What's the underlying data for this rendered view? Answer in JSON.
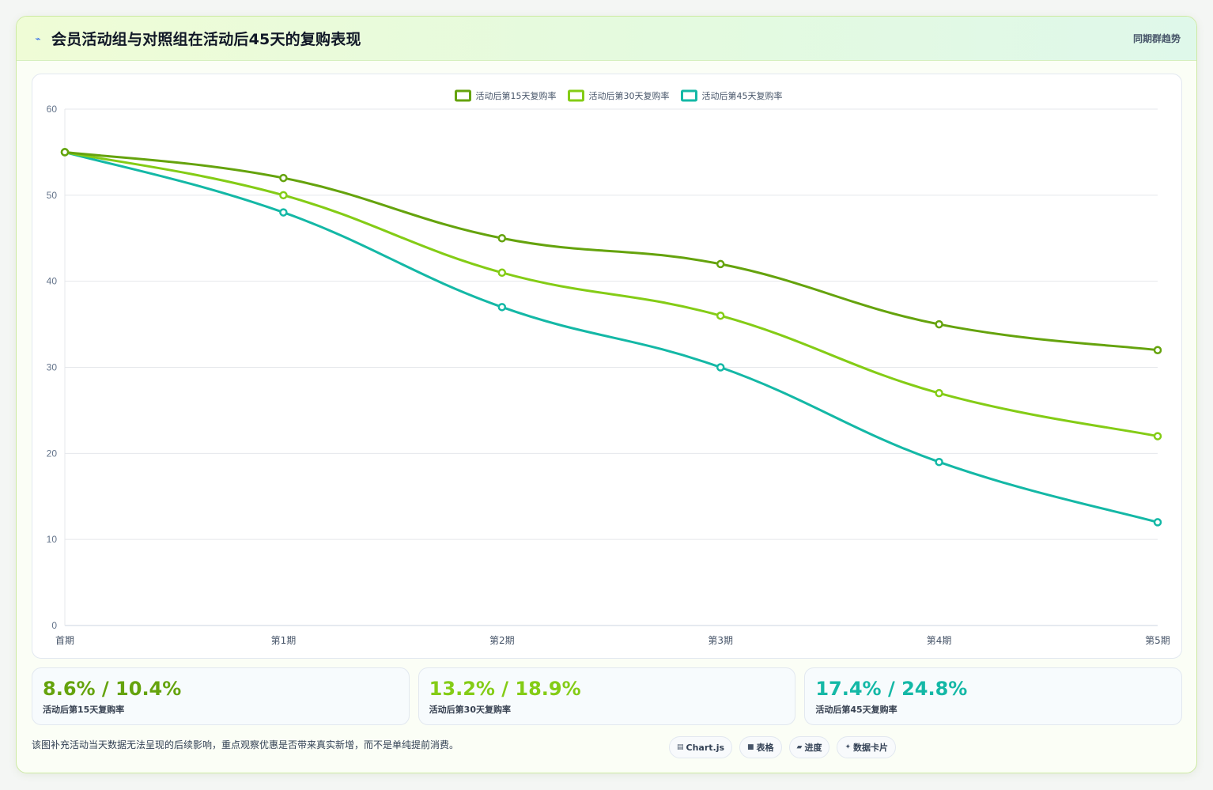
{
  "header": {
    "title": "会员活动组与对照组在活动后45天的复购表现",
    "link": "同期群趋势"
  },
  "chart_data": {
    "type": "line",
    "categories": [
      "首期",
      "第1期",
      "第2期",
      "第3期",
      "第4期",
      "第5期"
    ],
    "ylim": [
      0,
      60
    ],
    "yticks": [
      0,
      10,
      20,
      30,
      40,
      50,
      60
    ],
    "grid": true,
    "legend": "top-center",
    "series": [
      {
        "name": "活动后第15天复购率",
        "color": "#65a30d",
        "values": [
          55,
          52,
          45,
          42,
          35,
          32
        ]
      },
      {
        "name": "活动后第30天复购率",
        "color": "#84cc16",
        "values": [
          55,
          50,
          41,
          36,
          27,
          22
        ]
      },
      {
        "name": "活动后第45天复购率",
        "color": "#14b8a6",
        "values": [
          55,
          48,
          37,
          30,
          19,
          12
        ]
      }
    ]
  },
  "stats": [
    {
      "value": "8.6% / 10.4%",
      "label": "活动后第15天复购率",
      "color": "#65a30d"
    },
    {
      "value": "13.2% / 18.9%",
      "label": "活动后第30天复购率",
      "color": "#84cc16"
    },
    {
      "value": "17.4% / 24.8%",
      "label": "活动后第45天复购率",
      "color": "#14b8a6"
    }
  ],
  "footer": {
    "note": "该图补充活动当天数据无法呈现的后续影响，重点观察优惠是否带来真实新增，而不是单纯提前消费。",
    "tags": [
      {
        "icon": "chart-icon",
        "glyph": "▤",
        "label": "Chart.js"
      },
      {
        "icon": "table-icon",
        "glyph": "■",
        "label": "表格"
      },
      {
        "icon": "progress-icon",
        "glyph": "▰",
        "label": "进度"
      },
      {
        "icon": "data-card-icon",
        "glyph": "✦",
        "label": "数据卡片"
      }
    ]
  }
}
